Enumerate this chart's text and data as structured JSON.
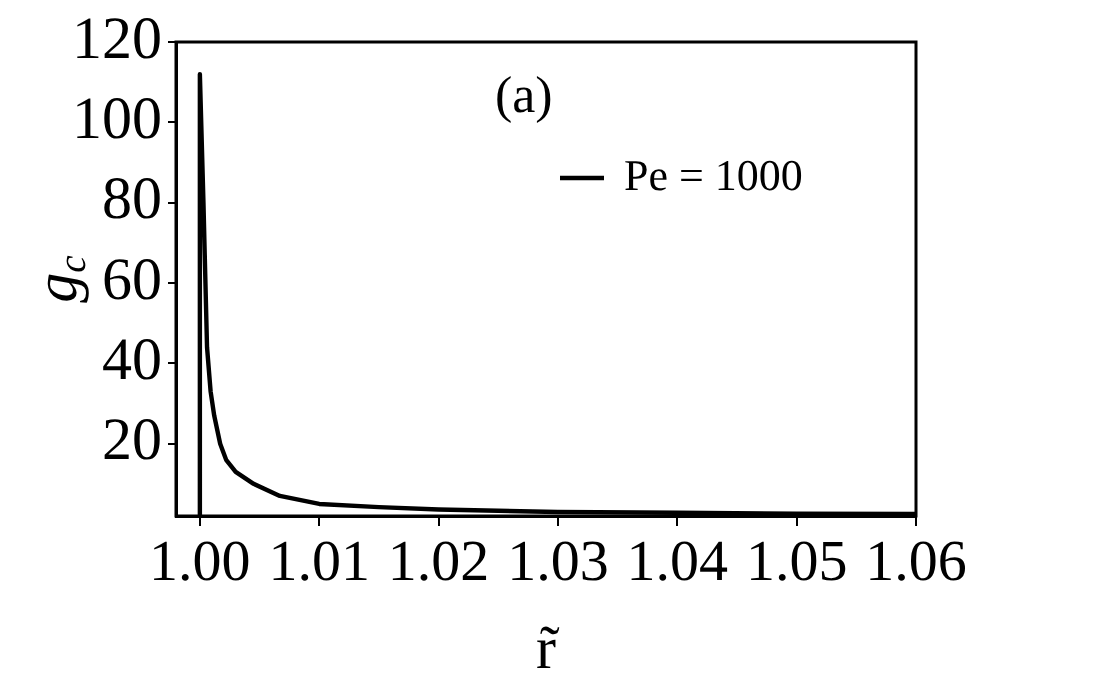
{
  "chart_data": {
    "type": "line",
    "xlabel": "r̃",
    "ylabel": "g$_{c}$",
    "annotations": [
      "(a)"
    ],
    "xlim": [
      0.998,
      1.06
    ],
    "ylim": [
      2,
      120
    ],
    "xticks": [
      {
        "value": 1,
        "label": "1.00"
      },
      {
        "value": 1.01,
        "label": "1.01"
      },
      {
        "value": 1.02,
        "label": "1.02"
      },
      {
        "value": 1.03,
        "label": "1.03"
      },
      {
        "value": 1.04,
        "label": "1.04"
      },
      {
        "value": 1.05,
        "label": "1.05"
      },
      {
        "value": 1.06,
        "label": "1.06"
      }
    ],
    "yticks": [
      20,
      40,
      60,
      80,
      100,
      120
    ],
    "grid": false,
    "legend": "top right",
    "series": [
      {
        "name": "Pe = 1000",
        "color": "#000000",
        "x": [
          1.0,
          1.0,
          1.0003,
          1.0006,
          1.0009,
          1.0012,
          1.0017,
          1.0022,
          1.003,
          1.0045,
          1.0067,
          1.01,
          1.015,
          1.02,
          1.03,
          1.04,
          1.05,
          1.06
        ],
        "values": [
          2,
          112,
          80,
          44,
          33,
          27,
          20,
          16,
          13,
          10,
          7,
          5,
          4.2,
          3.6,
          3,
          2.8,
          2.6,
          2.5
        ]
      }
    ]
  }
}
